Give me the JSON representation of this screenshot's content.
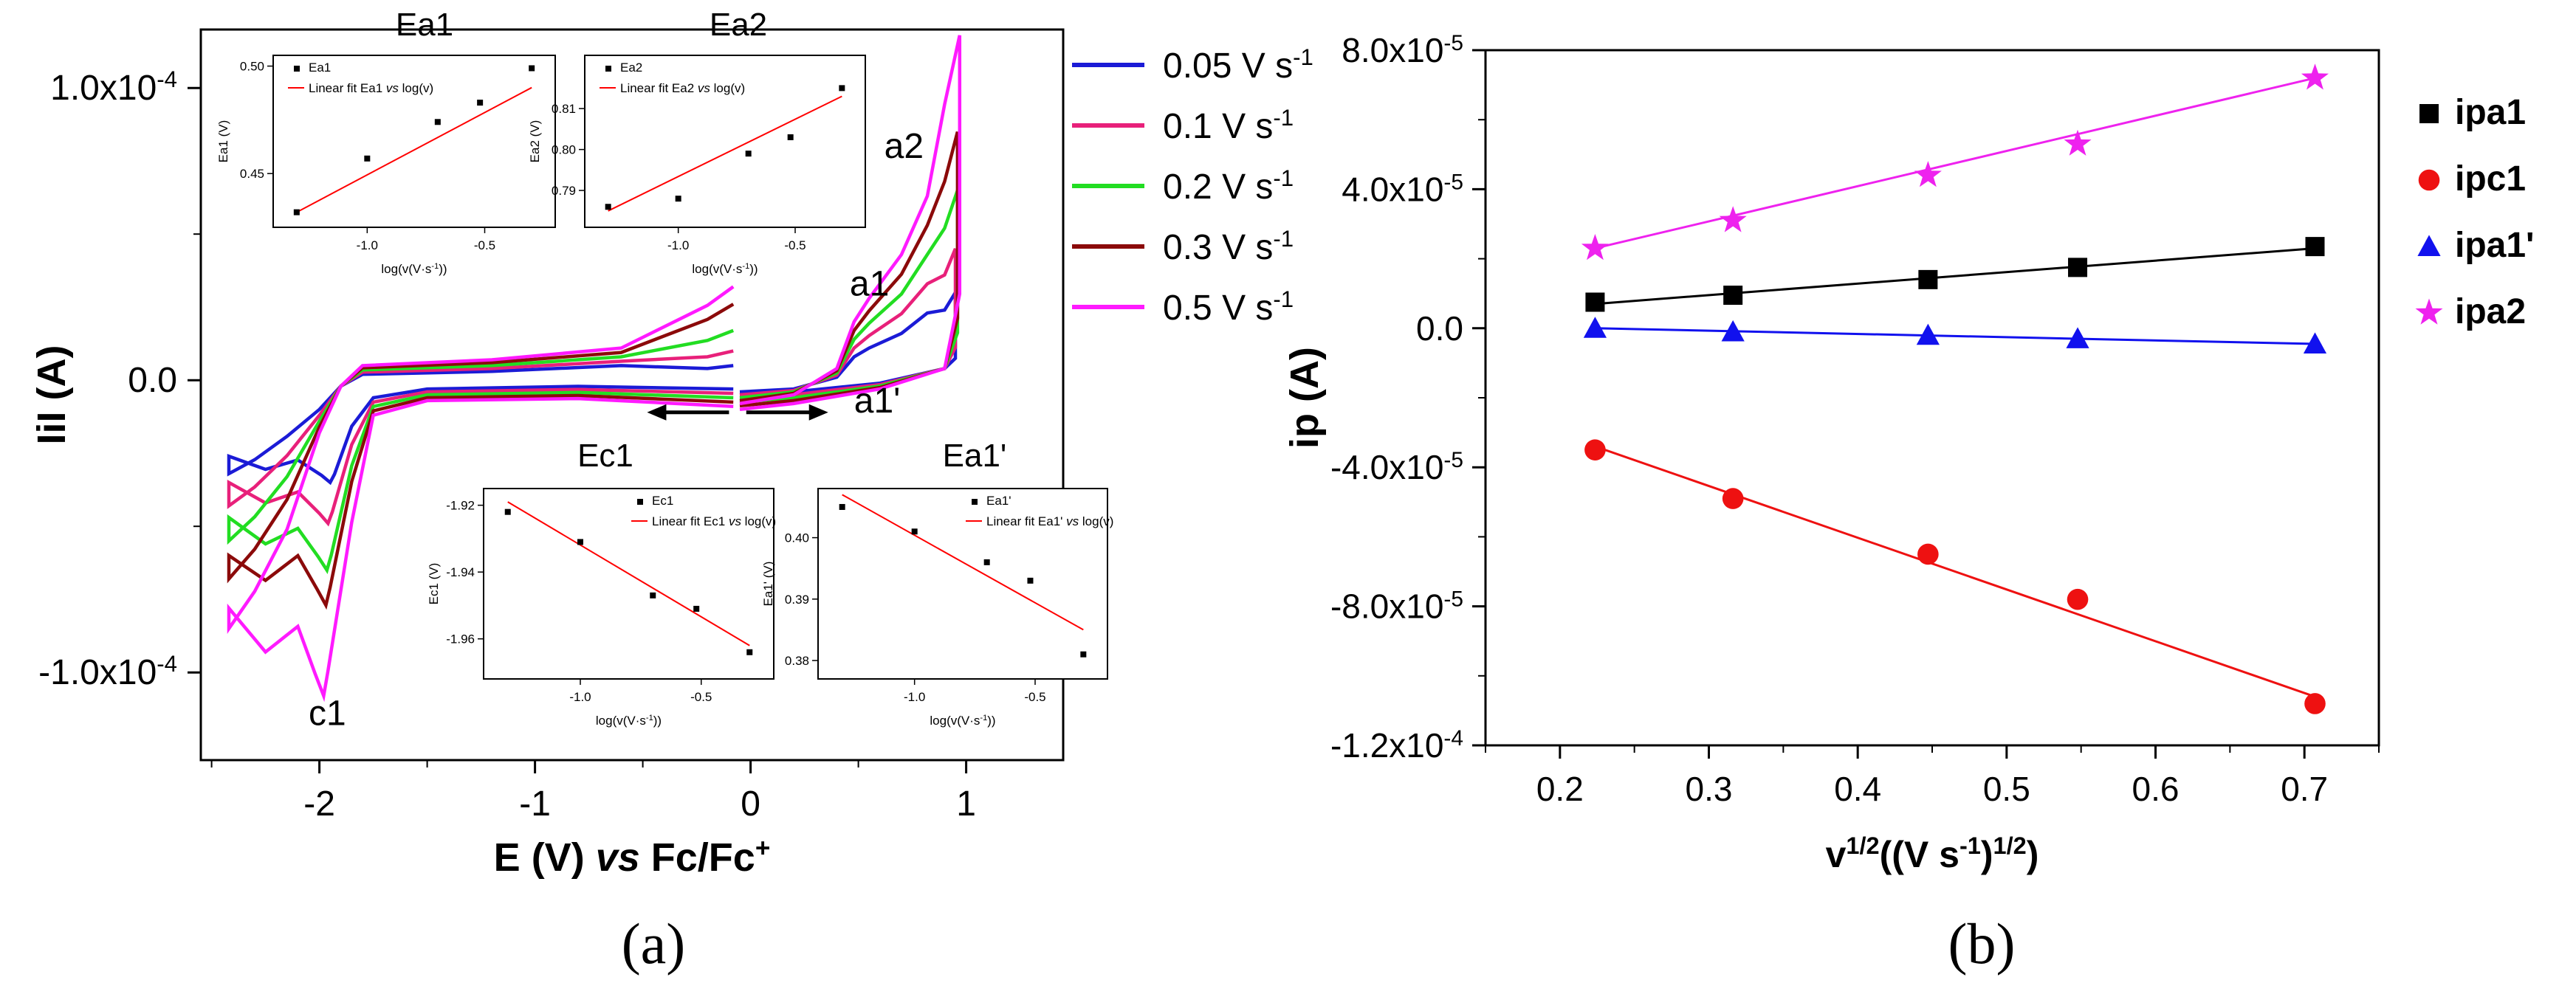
{
  "panel_labels": {
    "a": "(a)",
    "b": "(b)"
  },
  "chart_data": [
    {
      "id": "a",
      "type": "line",
      "title": "",
      "xlabel_parts": [
        "E (V) ",
        "vs",
        " Fc/Fc",
        "+"
      ],
      "ylabel": "IiI (A)",
      "xlim": [
        -2.55,
        1.45
      ],
      "ylim": [
        -0.00013,
        0.00012
      ],
      "xticks": [
        {
          "v": -2,
          "label": "-2"
        },
        {
          "v": -1,
          "label": "-1"
        },
        {
          "v": 0,
          "label": "0"
        },
        {
          "v": 1,
          "label": "1"
        }
      ],
      "yticks": [
        {
          "v": 0.0001,
          "label": "1.0x10",
          "exp": "-4"
        },
        {
          "v": 0,
          "label": "0.0",
          "exp": ""
        },
        {
          "v": -0.0001,
          "label": "-1.0x10",
          "exp": "-4"
        }
      ],
      "legend": {
        "position": "top-right-outside",
        "entries": [
          {
            "label": "0.05 V s",
            "sup": "-1",
            "color": "#1b1bd6"
          },
          {
            "label": "0.1 V s",
            "sup": "-1",
            "color": "#e8207a"
          },
          {
            "label": "0.2 V s",
            "sup": "-1",
            "color": "#22dd22"
          },
          {
            "label": "0.3 V s",
            "sup": "-1",
            "color": "#8b0a0a"
          },
          {
            "label": "0.5 V s",
            "sup": "-1",
            "color": "#ff1aff"
          }
        ]
      },
      "annotations": [
        {
          "text": "a2",
          "x": 0.62,
          "y": 7.6e-05
        },
        {
          "text": "a1",
          "x": 0.46,
          "y": 2.9e-05
        },
        {
          "text": "a1'",
          "x": 0.48,
          "y": -1.1e-05
        },
        {
          "text": "c1",
          "x": -2.05,
          "y": -0.000118
        }
      ],
      "cv_params": {
        "scan_rates": [
          0.05,
          0.1,
          0.2,
          0.3,
          0.5
        ],
        "cathodic_peak_E": [
          -1.95,
          -1.96,
          -1.965,
          -1.97,
          -1.98
        ],
        "cathodic_peak_i": [
          -3.5e-05,
          -4.9e-05,
          -6.5e-05,
          -7.7e-05,
          -0.000108
        ],
        "cathodic_end_i": [
          -2.6e-05,
          -3.5e-05,
          -4.7e-05,
          -6e-05,
          -7.8e-05
        ],
        "left_return_i": [
          -3.2e-05,
          -4.3e-05,
          -5.5e-05,
          -6.8e-05,
          -8.5e-05
        ],
        "anodic_end_E": [
          0.95,
          0.95,
          0.96,
          0.96,
          0.97
        ],
        "anodic_end_i": [
          3e-05,
          4.5e-05,
          6.5e-05,
          8.5e-05,
          0.000118
        ],
        "neg_scan_end_i": [
          5e-06,
          1e-05,
          1.7e-05,
          2.6e-05,
          3.2e-05
        ]
      },
      "insets": [
        {
          "name": "Ea1",
          "title": "Ea1",
          "legend_point": "Ea1",
          "legend_line_parts": [
            "Linear fit Ea1 ",
            "vs",
            " log(v)"
          ],
          "xlabel": "log(v(V·s",
          "xlabel_sup": "-1",
          "xlabel_end": "))",
          "ylabel": "Ea1 (V)",
          "xlim": [
            -1.4,
            -0.2
          ],
          "ylim": [
            0.425,
            0.505
          ],
          "xticks": [
            {
              "v": -1.0,
              "label": "-1.0"
            },
            {
              "v": -0.5,
              "label": "-0.5"
            }
          ],
          "yticks": [
            {
              "v": 0.45,
              "label": "0.45"
            },
            {
              "v": 0.5,
              "label": "0.50"
            }
          ],
          "x": [
            -1.3,
            -1.0,
            -0.7,
            -0.52,
            -0.3
          ],
          "y": [
            0.432,
            0.457,
            0.474,
            0.483,
            0.499
          ],
          "fit": [
            [
              -1.3,
              0.432
            ],
            [
              -0.3,
              0.49
            ]
          ]
        },
        {
          "name": "Ea2",
          "title": "Ea2",
          "legend_point": "Ea2",
          "legend_line_parts": [
            "Linear fit Ea2 ",
            "vs",
            " log(v)"
          ],
          "xlabel": "log(v(V·s",
          "xlabel_sup": "-1",
          "xlabel_end": "))",
          "ylabel": "Ea2 (V)",
          "xlim": [
            -1.4,
            -0.2
          ],
          "ylim": [
            0.781,
            0.823
          ],
          "xticks": [
            {
              "v": -1.0,
              "label": "-1.0"
            },
            {
              "v": -0.5,
              "label": "-0.5"
            }
          ],
          "yticks": [
            {
              "v": 0.79,
              "label": "0.79"
            },
            {
              "v": 0.8,
              "label": "0.80"
            },
            {
              "v": 0.81,
              "label": "0.81"
            }
          ],
          "x": [
            -1.3,
            -1.0,
            -0.7,
            -0.52,
            -0.3
          ],
          "y": [
            0.786,
            0.788,
            0.799,
            0.803,
            0.815
          ],
          "fit": [
            [
              -1.3,
              0.785
            ],
            [
              -0.3,
              0.813
            ]
          ]
        },
        {
          "name": "Ec1",
          "title": "Ec1",
          "legend_point": "Ec1",
          "legend_line_parts": [
            "Linear fit Ec1 ",
            "vs",
            " log(v)"
          ],
          "xlabel": "log(v(V·s",
          "xlabel_sup": "-1",
          "xlabel_end": "))",
          "ylabel": "Ec1 (V)",
          "xlim": [
            -1.4,
            -0.2
          ],
          "ylim": [
            -1.972,
            -1.915
          ],
          "xticks": [
            {
              "v": -1.0,
              "label": "-1.0"
            },
            {
              "v": -0.5,
              "label": "-0.5"
            }
          ],
          "yticks": [
            {
              "v": -1.92,
              "label": "-1.92"
            },
            {
              "v": -1.94,
              "label": "-1.94"
            },
            {
              "v": -1.96,
              "label": "-1.96"
            }
          ],
          "x": [
            -1.3,
            -1.0,
            -0.7,
            -0.52,
            -0.3
          ],
          "y": [
            -1.922,
            -1.931,
            -1.947,
            -1.951,
            -1.964
          ],
          "fit": [
            [
              -1.3,
              -1.919
            ],
            [
              -0.3,
              -1.962
            ]
          ]
        },
        {
          "name": "Ea1p",
          "title": "Ea1'",
          "legend_point": "Ea1'",
          "legend_line_parts": [
            "Linear fit Ea1' ",
            "vs",
            " log(v)"
          ],
          "xlabel": "log(v(V·s",
          "xlabel_sup": "-1",
          "xlabel_end": "))",
          "ylabel": "Ea1' (V)",
          "xlim": [
            -1.4,
            -0.2
          ],
          "ylim": [
            0.377,
            0.408
          ],
          "xticks": [
            {
              "v": -1.0,
              "label": "-1.0"
            },
            {
              "v": -0.5,
              "label": "-0.5"
            }
          ],
          "yticks": [
            {
              "v": 0.38,
              "label": "0.38"
            },
            {
              "v": 0.39,
              "label": "0.39"
            },
            {
              "v": 0.4,
              "label": "0.40"
            }
          ],
          "x": [
            -1.3,
            -1.0,
            -0.7,
            -0.52,
            -0.3
          ],
          "y": [
            0.405,
            0.401,
            0.396,
            0.393,
            0.381
          ],
          "fit": [
            [
              -1.3,
              0.407
            ],
            [
              -0.3,
              0.385
            ]
          ]
        }
      ]
    },
    {
      "id": "b",
      "type": "scatter",
      "title": "",
      "xlabel_parts": [
        "v",
        "1/2",
        "((V s",
        "-1",
        ")",
        "1/2",
        ")"
      ],
      "ylabel": "ip (A)",
      "xlim": [
        0.15,
        0.75
      ],
      "ylim": [
        -0.00012,
        8e-05
      ],
      "xticks": [
        {
          "v": 0.2,
          "label": "0.2"
        },
        {
          "v": 0.3,
          "label": "0.3"
        },
        {
          "v": 0.4,
          "label": "0.4"
        },
        {
          "v": 0.5,
          "label": "0.5"
        },
        {
          "v": 0.6,
          "label": "0.6"
        },
        {
          "v": 0.7,
          "label": "0.7"
        }
      ],
      "yticks": [
        {
          "v": 8e-05,
          "label": "8.0x10",
          "exp": "-5"
        },
        {
          "v": 4e-05,
          "label": "4.0x10",
          "exp": "-5"
        },
        {
          "v": 0,
          "label": "0.0",
          "exp": ""
        },
        {
          "v": -4e-05,
          "label": "-4.0x10",
          "exp": "-5"
        },
        {
          "v": -8e-05,
          "label": "-8.0x10",
          "exp": "-5"
        },
        {
          "v": -0.00012,
          "label": "-1.2x10",
          "exp": "-4"
        }
      ],
      "legend_position": "top-right-outside",
      "x": [
        0.2236,
        0.3162,
        0.4472,
        0.5477,
        0.7071
      ],
      "series": [
        {
          "name": "ipa1",
          "marker": "square",
          "color": "#000000",
          "values": [
            7.5e-06,
            9.5e-06,
            1.4e-05,
            1.75e-05,
            2.35e-05
          ],
          "fit": [
            [
              0.2236,
              7e-06
            ],
            [
              0.7071,
              2.3e-05
            ]
          ]
        },
        {
          "name": "ipc1",
          "marker": "circle",
          "color": "#ee1111",
          "values": [
            -3.5e-05,
            -4.9e-05,
            -6.5e-05,
            -7.8e-05,
            -0.000108
          ],
          "fit": [
            [
              0.2236,
              -3.4e-05
            ],
            [
              0.7071,
              -0.000106
            ]
          ]
        },
        {
          "name": "ipa1'",
          "marker": "triangle",
          "color": "#1111ee",
          "values": [
            0,
            -1e-06,
            -2e-06,
            -3e-06,
            -4.5e-06
          ],
          "fit": [
            [
              0.2236,
              0
            ],
            [
              0.7071,
              -4.5e-06
            ]
          ]
        },
        {
          "name": "ipa2",
          "marker": "star",
          "color": "#ee22ee",
          "values": [
            2.3e-05,
            3.1e-05,
            4.4e-05,
            5.3e-05,
            7.2e-05
          ],
          "fit": [
            [
              0.2236,
              2.3e-05
            ],
            [
              0.7071,
              7.2e-05
            ]
          ]
        }
      ]
    }
  ]
}
